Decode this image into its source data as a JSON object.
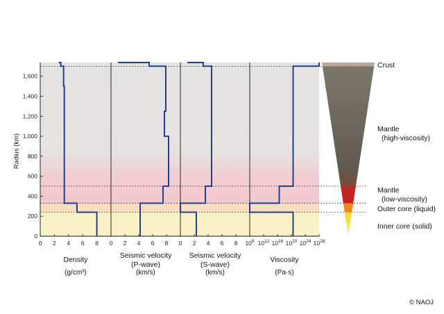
{
  "ylabel": "Radius (km)",
  "credit": "© NAOJ",
  "layers": {
    "crust": "Crust",
    "mantle_high": [
      "Mantle",
      "(high-viscosity)"
    ],
    "mantle_low": [
      "Mantle",
      "(low-viscosity)"
    ],
    "outer_core": "Outer core (liquid)",
    "inner_core": "Inner core (solid)"
  },
  "colors": {
    "profile_line": "#1f3f8f",
    "mantle_high_bg": "#e3e3e1",
    "mantle_low_bg": "#f2c8cf",
    "outer_core_bg": "#f8dcbf",
    "inner_core_bg": "#f8f2c6",
    "cone_crust": "#b7a99c",
    "cone_mantle_high": "#6e6a5e",
    "cone_mantle_low": "#c81e25",
    "cone_outer_core": "#ee8a1c",
    "cone_inner_core": "#f6e53c"
  },
  "chart_data": [
    {
      "type": "line",
      "title": "Density",
      "unit": "(g/cm³)",
      "ylabel": "Radius (km)",
      "ylim": [
        0,
        1737
      ],
      "xlim": [
        0,
        10
      ],
      "xticks": [
        "0",
        "2",
        "4",
        "6",
        "8"
      ],
      "yticks": [
        "0",
        "200",
        "400",
        "600",
        "800",
        "1,000",
        "1,200",
        "1,400",
        "1,600"
      ],
      "layer_boundaries_km": [
        240,
        330,
        500,
        1700
      ],
      "profile": [
        [
          8,
          0
        ],
        [
          8,
          240
        ],
        [
          5.2,
          240
        ],
        [
          5.2,
          330
        ],
        [
          3.4,
          330
        ],
        [
          3.4,
          500
        ],
        [
          3.4,
          1500
        ],
        [
          3.3,
          1500
        ],
        [
          3.3,
          1700
        ],
        [
          2.9,
          1700
        ],
        [
          2.9,
          1737
        ],
        [
          2.6,
          1737
        ]
      ]
    },
    {
      "type": "line",
      "title": "Seismic velocity (P-wave)",
      "unit": "(km/s)",
      "ylim": [
        0,
        1737
      ],
      "xlim": [
        0,
        10
      ],
      "xticks": [
        "0",
        "2",
        "4",
        "6",
        "8"
      ],
      "layer_boundaries_km": [
        240,
        330,
        500,
        1700
      ],
      "profile": [
        [
          4.2,
          0
        ],
        [
          4.2,
          240
        ],
        [
          4.2,
          330
        ],
        [
          7.5,
          330
        ],
        [
          7.5,
          500
        ],
        [
          8.3,
          500
        ],
        [
          8.3,
          1000
        ],
        [
          7.7,
          1000
        ],
        [
          7.7,
          1250
        ],
        [
          7.9,
          1250
        ],
        [
          7.9,
          1700
        ],
        [
          5.5,
          1700
        ],
        [
          5.5,
          1737
        ],
        [
          1.0,
          1737
        ]
      ]
    },
    {
      "type": "line",
      "title": "Seismic velocity (S-wave)",
      "unit": "(km/s)",
      "ylim": [
        0,
        1737
      ],
      "xlim": [
        0,
        10
      ],
      "xticks": [
        "0",
        "2",
        "4",
        "6",
        "8"
      ],
      "layer_boundaries_km": [
        240,
        330,
        500,
        1700
      ],
      "profile": [
        [
          2.3,
          0
        ],
        [
          2.3,
          240
        ],
        [
          0,
          240
        ],
        [
          0,
          330
        ],
        [
          3.6,
          330
        ],
        [
          3.6,
          500
        ],
        [
          4.5,
          500
        ],
        [
          4.5,
          1700
        ],
        [
          3.3,
          1700
        ],
        [
          3.3,
          1737
        ],
        [
          1.0,
          1737
        ]
      ]
    },
    {
      "type": "line",
      "title": "Viscosity",
      "unit": "(Pa·s)",
      "x_scale": "log",
      "ylim": [
        0,
        1737
      ],
      "xlim": [
        8,
        28
      ],
      "xticks": [
        "8",
        "12",
        "16",
        "20",
        "24",
        "28"
      ],
      "layer_boundaries_km": [
        240,
        330,
        500,
        1700
      ],
      "profile": [
        [
          20.5,
          0
        ],
        [
          20.5,
          240
        ],
        [
          8,
          240
        ],
        [
          8,
          330
        ],
        [
          16.5,
          330
        ],
        [
          16.5,
          500
        ],
        [
          20.5,
          500
        ],
        [
          20.5,
          1700
        ],
        [
          28,
          1700
        ],
        [
          28,
          1737
        ]
      ]
    }
  ],
  "panel_text": [
    {
      "title": [
        "Density"
      ],
      "unit": "(g/cm³)"
    },
    {
      "title": [
        "Seismic velocity",
        "(P-wave)"
      ],
      "unit": "(km/s)"
    },
    {
      "title": [
        "Seismic velocity",
        "(S-wave)"
      ],
      "unit": "(km/s)"
    },
    {
      "title": [
        "Viscosity"
      ],
      "unit": "(Pa·s)"
    }
  ]
}
